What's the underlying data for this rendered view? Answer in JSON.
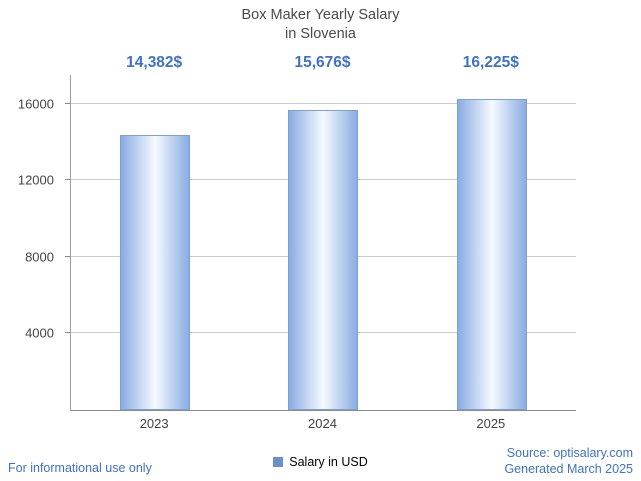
{
  "title": {
    "line1": "Box Maker Yearly Salary",
    "line2": "in Slovenia"
  },
  "chart_data": {
    "type": "bar",
    "title": "Box Maker Yearly Salary in Slovenia",
    "categories": [
      "2023",
      "2024",
      "2025"
    ],
    "values": [
      14382,
      15676,
      16225
    ],
    "value_labels": [
      "14,382$",
      "15,676$",
      "16,225$"
    ],
    "series_name": "Salary in USD",
    "yticks": [
      4000,
      8000,
      12000,
      16000
    ],
    "ylim": [
      0,
      17500
    ],
    "grid": true,
    "legend_position": "bottom",
    "bar_edge_color": "#8aace1",
    "bar_center_color": "#f6faff",
    "bar_border_color": "#7ba1d8"
  },
  "legend": {
    "label": "Salary in USD",
    "swatch_color": "#6d8fc9"
  },
  "footer": {
    "left": "For informational use only",
    "source": "Source: optisalary.com",
    "generated": "Generated March 2025"
  },
  "colors": {
    "value_label": "#3e71c9",
    "footer_text": "#3e71c9",
    "title_text": "#4a4a4a",
    "axis_text": "#444444",
    "gridline": "#cccccc"
  }
}
